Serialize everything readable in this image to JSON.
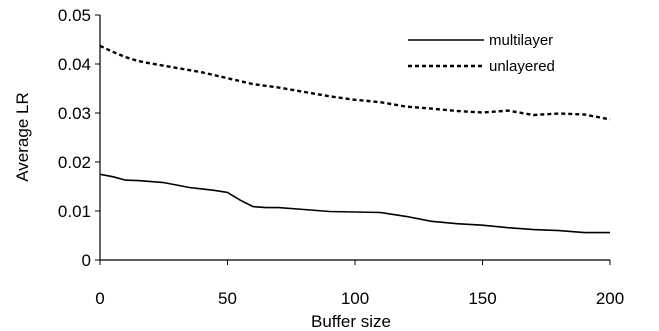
{
  "chart_data": {
    "type": "line",
    "title": "",
    "xlabel": "Buffer size",
    "ylabel": "Average LR",
    "xlim": [
      0,
      200
    ],
    "ylim": [
      0,
      0.05
    ],
    "x_ticks": [
      "0",
      "50",
      "100",
      "150",
      "200"
    ],
    "y_ticks": [
      "0",
      "0.01",
      "0.02",
      "0.03",
      "0.04",
      "0.05"
    ],
    "x_tick_values": [
      0,
      50,
      100,
      150,
      200
    ],
    "y_tick_values": [
      0,
      0.01,
      0.02,
      0.03,
      0.04,
      0.05
    ],
    "grid": false,
    "legend_position": "top-right",
    "series": [
      {
        "name": "multilayer",
        "style": "solid",
        "color": "#000000",
        "x": [
          0,
          5,
          10,
          15,
          20,
          25,
          30,
          35,
          40,
          45,
          50,
          55,
          60,
          65,
          70,
          80,
          90,
          100,
          110,
          120,
          130,
          140,
          150,
          160,
          170,
          180,
          190,
          200
        ],
        "y": [
          0.0175,
          0.017,
          0.0163,
          0.0162,
          0.016,
          0.0158,
          0.0153,
          0.0148,
          0.0145,
          0.0142,
          0.0138,
          0.0122,
          0.0109,
          0.0107,
          0.0107,
          0.0103,
          0.0099,
          0.0098,
          0.0097,
          0.0089,
          0.0079,
          0.0074,
          0.0071,
          0.0066,
          0.0062,
          0.006,
          0.0056,
          0.0056
        ]
      },
      {
        "name": "unlayered",
        "style": "dotted",
        "color": "#000000",
        "x": [
          0,
          5,
          10,
          15,
          20,
          30,
          40,
          50,
          60,
          70,
          80,
          90,
          100,
          110,
          120,
          130,
          140,
          150,
          160,
          170,
          180,
          190,
          200
        ],
        "y": [
          0.0437,
          0.0425,
          0.0414,
          0.0406,
          0.0401,
          0.0392,
          0.0383,
          0.0371,
          0.0359,
          0.0352,
          0.0343,
          0.0334,
          0.0327,
          0.0322,
          0.0313,
          0.0309,
          0.0304,
          0.0301,
          0.0305,
          0.0296,
          0.0299,
          0.0297,
          0.0287
        ]
      }
    ]
  }
}
